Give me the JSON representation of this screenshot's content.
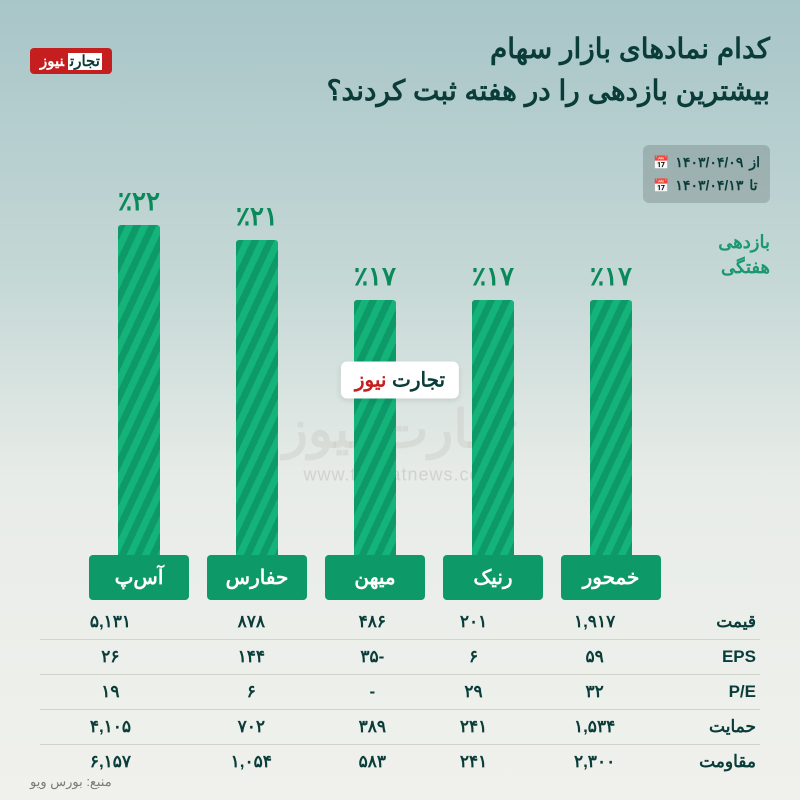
{
  "title_line1": "کدام نمادهای بازار سهام",
  "title_line2": "بیشترین بازدهی را در هفته ثبت کردند؟",
  "logo_text": "نیوز",
  "date_from_label": "از",
  "date_from": "۱۴۰۳/۰۴/۰۹",
  "date_to_label": "تا",
  "date_to": "۱۴۰۳/۰۴/۱۳",
  "y_axis_label_l1": "بازدهی",
  "y_axis_label_l2": "هفتگی",
  "watermark_text": "تجارت نیوز",
  "watermark_url": "www.tejaratnews.com",
  "source": "منبع: بورس ویو",
  "chart": {
    "type": "bar",
    "max_value": 22,
    "bar_color_a": "#0d9968",
    "bar_color_b": "#14b37a",
    "label_bg": "#0d9968",
    "value_color": "#0a8a5a",
    "bars": [
      {
        "label": "آس‌پ",
        "value": 22,
        "display": "٪۲۲"
      },
      {
        "label": "حفارس",
        "value": 21,
        "display": "٪۲۱"
      },
      {
        "label": "میهن",
        "value": 17,
        "display": "٪۱۷"
      },
      {
        "label": "رنیک",
        "value": 17,
        "display": "٪۱۷"
      },
      {
        "label": "خمحور",
        "value": 17,
        "display": "٪۱۷"
      }
    ]
  },
  "table": {
    "row_headers": [
      "قیمت",
      "EPS",
      "P/E",
      "حمایت",
      "مقاومت"
    ],
    "columns": [
      "آس‌پ",
      "حفارس",
      "میهن",
      "رنیک",
      "خمحور"
    ],
    "rows": [
      [
        "۱,۹۱۷",
        "۲۰۱",
        "۴۸۶",
        "۸۷۸",
        "۵,۱۳۱"
      ],
      [
        "۵۹",
        "۶",
        "-۳۵",
        "۱۴۴",
        "۲۶"
      ],
      [
        "۳۲",
        "۲۹",
        "-",
        "۶",
        "۱۹"
      ],
      [
        "۱,۵۳۴",
        "۲۴۱",
        "۳۸۹",
        "۷۰۲",
        "۴,۱۰۵"
      ],
      [
        "۲,۳۰۰",
        "۲۴۱",
        "۵۸۳",
        "۱,۰۵۴",
        "۶,۱۵۷"
      ]
    ]
  }
}
